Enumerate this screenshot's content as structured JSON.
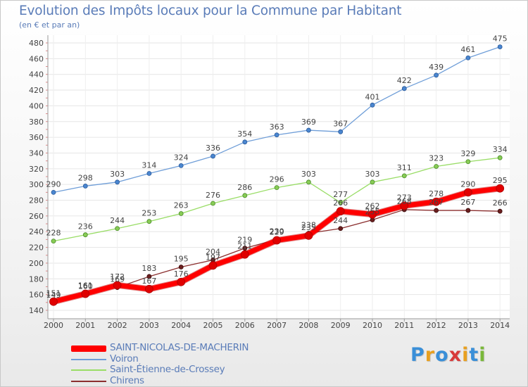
{
  "title": "Evolution des Impôts locaux pour la Commune par Habitant",
  "subtitle": "(en € et par an)",
  "logo": {
    "text": "Proxiti",
    "letter_colors": [
      "#3a8fd8",
      "#e8a020",
      "#3a8fd8",
      "#d83a3a",
      "#e8a020",
      "#3a8fd8",
      "#7ab83a"
    ]
  },
  "chart_data": {
    "type": "line",
    "title": "Evolution des Impôts locaux pour la Commune par Habitant",
    "subtitle": "(en € et par an)",
    "xlabel": "",
    "ylabel": "",
    "ylim": [
      140,
      480
    ],
    "y_ticks": [
      140,
      160,
      180,
      200,
      220,
      240,
      260,
      280,
      300,
      320,
      340,
      360,
      380,
      400,
      420,
      440,
      460,
      480
    ],
    "grid": true,
    "legend_position": "bottom-left",
    "x": [
      "2000",
      "2001",
      "2002",
      "2003",
      "2004",
      "2005",
      "2006",
      "2007",
      "2008",
      "2009",
      "2010",
      "2011",
      "2012",
      "2013",
      "2014"
    ],
    "series": [
      {
        "name": "SAINT-NICOLAS-DE-MACHERIN",
        "color": "#ff0000",
        "values": [
          151,
          161,
          172,
          167,
          176,
          197,
          211,
          229,
          235,
          266,
          262,
          273,
          278,
          290,
          295
        ],
        "labels": [
          "151",
          "161",
          "172",
          "167",
          "176",
          "197",
          "211",
          "229",
          "235",
          "266",
          "262",
          "273",
          "278",
          "290",
          "295"
        ],
        "emphasis": true
      },
      {
        "name": "Voiron",
        "color": "#6f9ed8",
        "values": [
          290,
          298,
          303,
          314,
          324,
          336,
          354,
          363,
          369,
          367,
          401,
          422,
          439,
          461,
          475
        ],
        "labels": [
          "290",
          "298",
          "303",
          "314",
          "324",
          "336",
          "354",
          "363",
          "369",
          "367",
          "401",
          "422",
          "439",
          "461",
          "475"
        ]
      },
      {
        "name": "Saint-Étienne-de-Crossey",
        "color": "#99dd66",
        "values": [
          228,
          236,
          244,
          253,
          263,
          276,
          286,
          296,
          303,
          277,
          303,
          311,
          323,
          329,
          334
        ],
        "labels": [
          "228",
          "236",
          "244",
          "253",
          "263",
          "276",
          "286",
          "296",
          "303",
          "277",
          "303",
          "311",
          "323",
          "329",
          "334"
        ]
      },
      {
        "name": "Chirens",
        "color": "#8b2f2f",
        "values": [
          149,
          160,
          169,
          183,
          195,
          204,
          219,
          230,
          238,
          244,
          255,
          268,
          267,
          267,
          266
        ],
        "labels": [
          "149",
          "160",
          "169",
          "183",
          "195",
          "204",
          "219",
          "230",
          "238",
          "244",
          "255",
          "268",
          "267",
          "267",
          "266"
        ]
      }
    ]
  }
}
